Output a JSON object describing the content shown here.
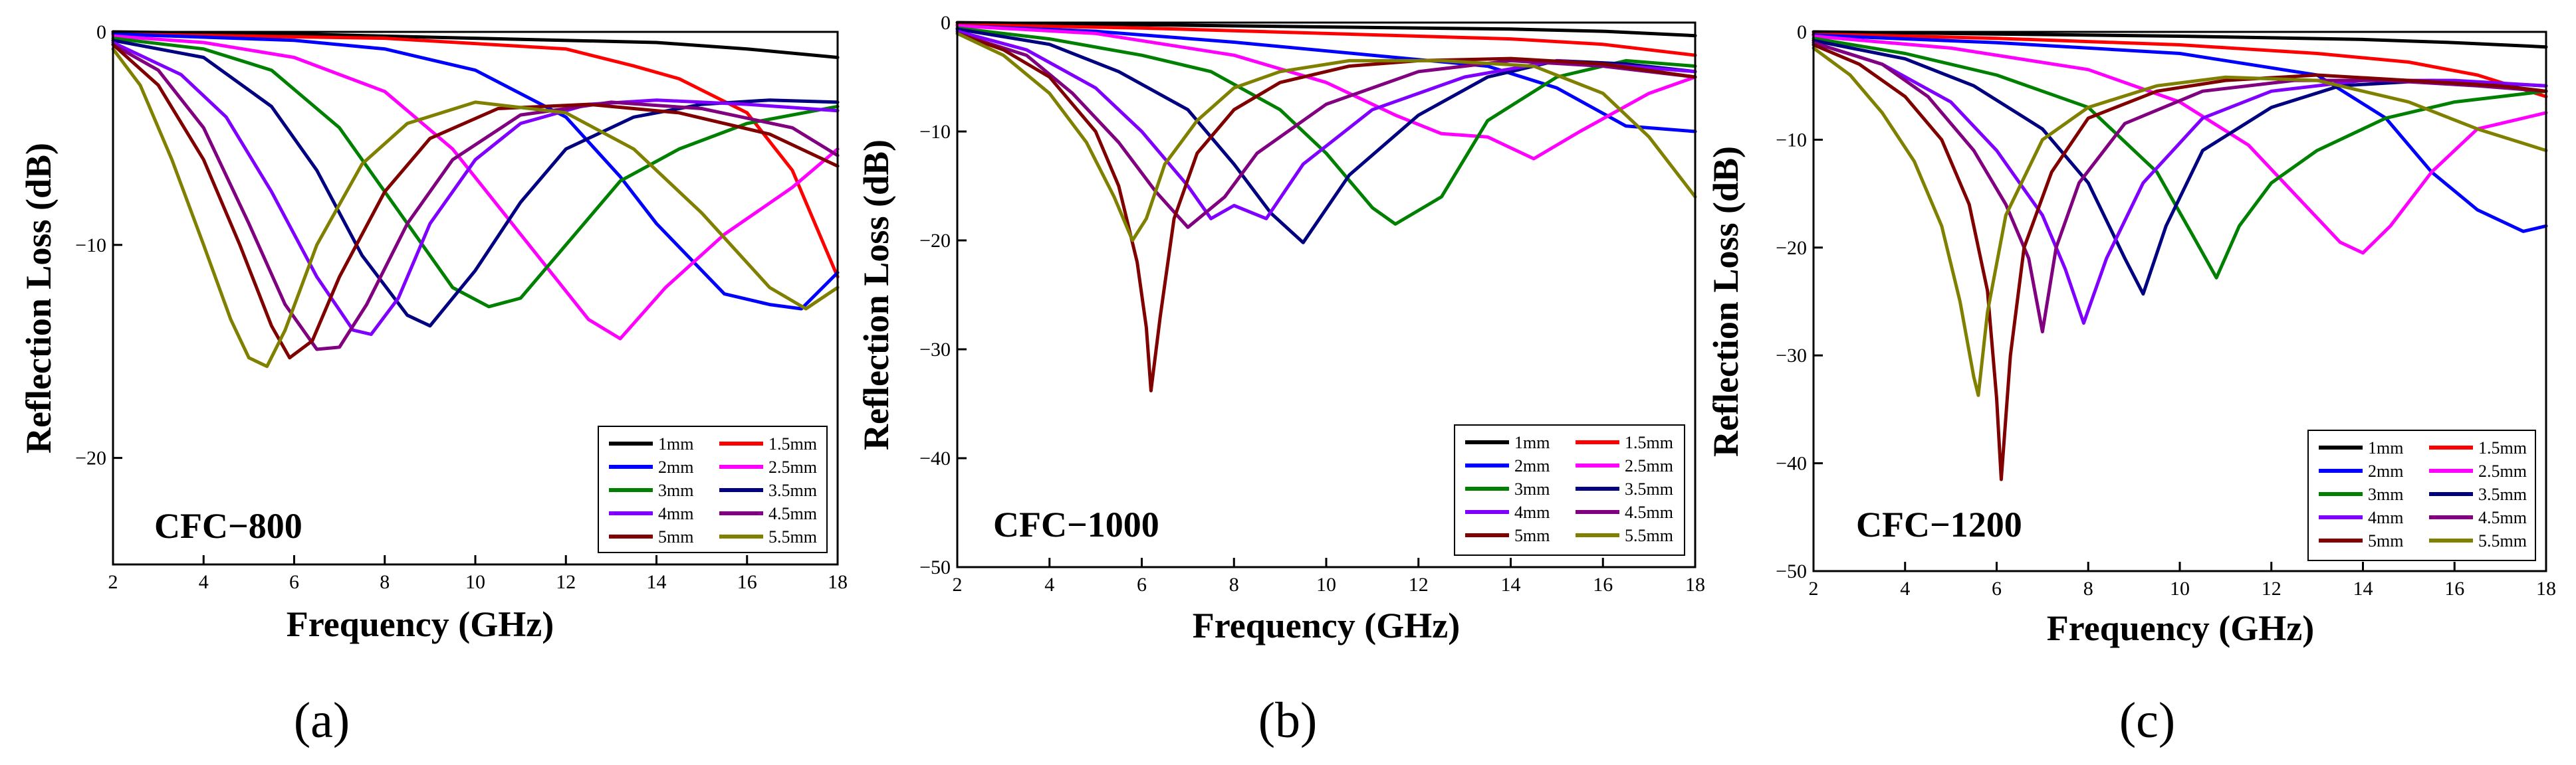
{
  "colors": {
    "1mm": "#000000",
    "1.5mm": "#ff0000",
    "2mm": "#0000ff",
    "2.5mm": "#ff00ff",
    "3mm": "#008000",
    "3.5mm": "#000080",
    "4mm": "#8000ff",
    "4.5mm": "#800080",
    "5mm": "#800000",
    "5.5mm": "#808000"
  },
  "chart_data": [
    {
      "type": "line",
      "panel_label": "(a)",
      "sample": "CFC−800",
      "xlabel": "Frequency (GHz)",
      "ylabel": "Reflection Loss (dB)",
      "xlim": [
        2,
        18
      ],
      "ylim": [
        -25,
        0
      ],
      "xticks": [
        2,
        4,
        6,
        8,
        10,
        12,
        14,
        16,
        18
      ],
      "yticks": [
        0,
        -10,
        -20
      ],
      "legend_location": "bottom-right",
      "series": [
        {
          "name": "1mm",
          "x": [
            2,
            6,
            10,
            14,
            16,
            18
          ],
          "y": [
            0,
            -0.1,
            -0.3,
            -0.5,
            -0.8,
            -1.2
          ]
        },
        {
          "name": "1.5mm",
          "x": [
            2,
            8,
            12,
            13.5,
            14.5,
            16,
            17,
            18
          ],
          "y": [
            -0.1,
            -0.3,
            -0.8,
            -1.6,
            -2.2,
            -3.8,
            -6.5,
            -11.5
          ]
        },
        {
          "name": "2mm",
          "x": [
            2,
            6,
            8,
            10,
            12,
            13.2,
            14,
            15.5,
            16.5,
            17.2,
            18
          ],
          "y": [
            -0.1,
            -0.4,
            -0.8,
            -1.8,
            -4,
            -6.8,
            -9,
            -12.3,
            -12.8,
            -13,
            -11.3
          ]
        },
        {
          "name": "2.5mm",
          "x": [
            2,
            4,
            6,
            8,
            9.5,
            11,
            12.5,
            13.2,
            14.2,
            15.5,
            17,
            18
          ],
          "y": [
            -0.2,
            -0.5,
            -1.2,
            -2.8,
            -5.5,
            -9.5,
            -13.5,
            -14.4,
            -12,
            -9.5,
            -7.3,
            -5.5
          ]
        },
        {
          "name": "3mm",
          "x": [
            2,
            4,
            5.5,
            7,
            8.5,
            9.5,
            10.3,
            11,
            12,
            13.2,
            14.5,
            16,
            18
          ],
          "y": [
            -0.3,
            -0.8,
            -1.8,
            -4.5,
            -9,
            -12,
            -12.9,
            -12.5,
            -10,
            -7,
            -5.5,
            -4.3,
            -3.5
          ]
        },
        {
          "name": "3.5mm",
          "x": [
            2,
            4,
            5.5,
            6.5,
            7.5,
            8.5,
            9,
            10,
            11,
            12,
            13.5,
            15,
            16.5,
            18
          ],
          "y": [
            -0.4,
            -1.2,
            -3.5,
            -6.5,
            -10.5,
            -13.3,
            -13.8,
            -11.2,
            -8,
            -5.5,
            -4,
            -3.4,
            -3.2,
            -3.3
          ]
        },
        {
          "name": "4mm",
          "x": [
            2,
            3.5,
            4.5,
            5.5,
            6.5,
            7.3,
            7.7,
            8.3,
            9,
            10,
            11,
            12.5,
            14,
            16,
            18
          ],
          "y": [
            -0.5,
            -2,
            -4,
            -7.5,
            -11.5,
            -14,
            -14.2,
            -12.5,
            -9,
            -6,
            -4.3,
            -3.4,
            -3.2,
            -3.4,
            -3.7
          ]
        },
        {
          "name": "4.5mm",
          "x": [
            2,
            3,
            4,
            5,
            5.8,
            6.5,
            7,
            7.6,
            8.5,
            9.5,
            11,
            13,
            15,
            17,
            18
          ],
          "y": [
            -0.6,
            -1.8,
            -4.5,
            -9,
            -12.8,
            -14.9,
            -14.8,
            -12.8,
            -9,
            -6,
            -3.9,
            -3.3,
            -3.6,
            -4.5,
            -5.8
          ]
        },
        {
          "name": "5mm",
          "x": [
            2,
            3,
            4,
            4.8,
            5.5,
            5.9,
            6.4,
            7,
            8,
            9,
            10.5,
            12.5,
            14.5,
            16.5,
            18
          ],
          "y": [
            -0.6,
            -2.5,
            -6,
            -10,
            -13.8,
            -15.3,
            -14.5,
            -11.5,
            -7.5,
            -5,
            -3.6,
            -3.4,
            -3.8,
            -4.8,
            -6.3
          ]
        },
        {
          "name": "5.5mm",
          "x": [
            2,
            2.6,
            3.3,
            4,
            4.6,
            5,
            5.4,
            5.8,
            6.5,
            7.5,
            8.5,
            10,
            12,
            13.5,
            15,
            16.5,
            17.3,
            18
          ],
          "y": [
            -0.8,
            -2.5,
            -6,
            -10,
            -13.5,
            -15.3,
            -15.7,
            -14,
            -10,
            -6.2,
            -4.3,
            -3.3,
            -3.8,
            -5.5,
            -8.5,
            -12,
            -13,
            -12
          ]
        }
      ]
    },
    {
      "type": "line",
      "panel_label": "(b)",
      "sample": "CFC−1000",
      "xlabel": "Frequency (GHz)",
      "ylabel": "Reflection Loss (dB)",
      "xlim": [
        2,
        18
      ],
      "ylim": [
        -50,
        0
      ],
      "xticks": [
        2,
        4,
        6,
        8,
        10,
        12,
        14,
        16,
        18
      ],
      "yticks": [
        0,
        -10,
        -20,
        -30,
        -40,
        -50
      ],
      "legend_location": "bottom-right",
      "series": [
        {
          "name": "1mm",
          "x": [
            2,
            6,
            10,
            14,
            16,
            18
          ],
          "y": [
            0,
            -0.2,
            -0.4,
            -0.6,
            -0.8,
            -1.2
          ]
        },
        {
          "name": "1.5mm",
          "x": [
            2,
            6,
            10,
            14,
            16,
            18
          ],
          "y": [
            -0.2,
            -0.5,
            -1,
            -1.5,
            -2,
            -3
          ]
        },
        {
          "name": "2mm",
          "x": [
            2,
            5,
            8,
            11,
            13.5,
            15,
            16.5,
            18
          ],
          "y": [
            -0.3,
            -0.8,
            -1.8,
            -3,
            -4,
            -6,
            -9.5,
            -10
          ]
        },
        {
          "name": "2.5mm",
          "x": [
            2,
            5,
            8,
            10,
            11.5,
            12.5,
            13.5,
            14.5,
            15.5,
            17,
            18
          ],
          "y": [
            -0.3,
            -1,
            -3,
            -5.5,
            -8.5,
            -10.2,
            -10.5,
            -12.5,
            -10,
            -6.5,
            -5
          ]
        },
        {
          "name": "3mm",
          "x": [
            2,
            4,
            6,
            7.5,
            9,
            10,
            11,
            11.5,
            12.5,
            13.5,
            15,
            16.5,
            18
          ],
          "y": [
            -0.5,
            -1.5,
            -3,
            -4.5,
            -8,
            -12,
            -17,
            -18.5,
            -16,
            -9,
            -5,
            -3.5,
            -4
          ]
        },
        {
          "name": "3.5mm",
          "x": [
            2,
            4,
            5.5,
            7,
            8,
            8.8,
            9.5,
            10.5,
            12,
            13.5,
            15,
            16.5,
            18
          ],
          "y": [
            -0.6,
            -2,
            -4.5,
            -8,
            -13,
            -17.5,
            -20.2,
            -14,
            -8.5,
            -5,
            -3.5,
            -3.8,
            -4.5
          ]
        },
        {
          "name": "4mm",
          "x": [
            2,
            3.5,
            5,
            6,
            7,
            7.5,
            8,
            8.7,
            9.5,
            11,
            13,
            15,
            18
          ],
          "y": [
            -0.8,
            -2.5,
            -6,
            -10,
            -15,
            -18,
            -16.8,
            -18,
            -13,
            -8,
            -5,
            -3.5,
            -4.5
          ]
        },
        {
          "name": "4.5mm",
          "x": [
            2,
            3.5,
            4.5,
            5.5,
            6.3,
            7,
            7.8,
            8.5,
            10,
            12,
            14,
            16,
            18
          ],
          "y": [
            -1,
            -3,
            -6.5,
            -11,
            -15.5,
            -18.8,
            -16,
            -12,
            -7.5,
            -4.5,
            -3.5,
            -4,
            -5
          ]
        },
        {
          "name": "5mm",
          "x": [
            2,
            3,
            4,
            5,
            5.5,
            5.9,
            6.1,
            6.2,
            6.4,
            6.7,
            7.2,
            8,
            9,
            10.5,
            12,
            14,
            16,
            18
          ],
          "y": [
            -1,
            -2.5,
            -5,
            -10,
            -15,
            -22,
            -28,
            -33.8,
            -27,
            -18,
            -12,
            -8,
            -5.5,
            -4,
            -3.5,
            -3.3,
            -3.8,
            -5
          ]
        },
        {
          "name": "5.5mm",
          "x": [
            2,
            3,
            4,
            4.8,
            5.4,
            5.8,
            6.1,
            6.5,
            7.2,
            8,
            9,
            10.5,
            12.5,
            14.5,
            16,
            17,
            18
          ],
          "y": [
            -1,
            -3,
            -6.5,
            -11,
            -16,
            -20,
            -18,
            -13,
            -9,
            -6,
            -4.5,
            -3.5,
            -3.5,
            -4,
            -6.5,
            -10.5,
            -16
          ]
        }
      ]
    },
    {
      "type": "line",
      "panel_label": "(c)",
      "sample": "CFC−1200",
      "xlabel": "Frequency (GHz)",
      "ylabel": "Reflection Loss (dB)",
      "xlim": [
        2,
        18
      ],
      "ylim": [
        -50,
        0
      ],
      "xticks": [
        2,
        4,
        6,
        8,
        10,
        12,
        14,
        16,
        18
      ],
      "yticks": [
        0,
        -10,
        -20,
        -30,
        -40,
        -50
      ],
      "legend_location": "bottom-right",
      "series": [
        {
          "name": "1mm",
          "x": [
            2,
            6,
            10,
            14,
            16,
            18
          ],
          "y": [
            0,
            -0.2,
            -0.4,
            -0.7,
            -1,
            -1.4
          ]
        },
        {
          "name": "1.5mm",
          "x": [
            2,
            6,
            10,
            13,
            15,
            16.5,
            18
          ],
          "y": [
            -0.2,
            -0.6,
            -1.2,
            -2,
            -2.8,
            -4,
            -6
          ]
        },
        {
          "name": "2mm",
          "x": [
            2,
            6,
            10,
            13,
            14.5,
            15.5,
            16.5,
            17.5,
            18
          ],
          "y": [
            -0.3,
            -1,
            -2,
            -4,
            -8,
            -13,
            -16.5,
            -18.5,
            -18
          ]
        },
        {
          "name": "2.5mm",
          "x": [
            2,
            5,
            8,
            10,
            11.5,
            12.5,
            13.5,
            14,
            14.6,
            15.5,
            16.5,
            18
          ],
          "y": [
            -0.4,
            -1.5,
            -3.5,
            -6.5,
            -10.5,
            -15,
            -19.5,
            -20.5,
            -18,
            -13,
            -9,
            -7.5
          ]
        },
        {
          "name": "3mm",
          "x": [
            2,
            4,
            6,
            8,
            9.5,
            10.3,
            10.8,
            11.3,
            12,
            13,
            14.5,
            16,
            18
          ],
          "y": [
            -0.6,
            -2,
            -4,
            -7,
            -13,
            -19,
            -22.8,
            -18,
            -14,
            -11,
            -8,
            -6.5,
            -5.5
          ]
        },
        {
          "name": "3.5mm",
          "x": [
            2,
            4,
            5.5,
            7,
            8,
            8.8,
            9.2,
            9.7,
            10.5,
            12,
            13.5,
            15.5,
            18
          ],
          "y": [
            -0.8,
            -2.5,
            -5,
            -9,
            -14,
            -21,
            -24.3,
            -18,
            -11,
            -7,
            -5,
            -4.5,
            -5
          ]
        },
        {
          "name": "4mm",
          "x": [
            2,
            3.5,
            5,
            6,
            7,
            7.5,
            7.9,
            8.4,
            9.2,
            10.5,
            12,
            14,
            16,
            18
          ],
          "y": [
            -1,
            -3,
            -6.5,
            -11,
            -17,
            -22,
            -27,
            -21,
            -14,
            -8,
            -5.5,
            -4.5,
            -4.5,
            -5
          ]
        },
        {
          "name": "4.5mm",
          "x": [
            2,
            3.5,
            4.5,
            5.5,
            6.2,
            6.7,
            7,
            7.3,
            7.8,
            8.8,
            10.5,
            12.5,
            14.5,
            16.5,
            18
          ],
          "y": [
            -1,
            -3,
            -6,
            -11,
            -16,
            -21,
            -27.8,
            -20,
            -14,
            -8.5,
            -5.5,
            -4.5,
            -4.5,
            -5,
            -5.5
          ]
        },
        {
          "name": "5mm",
          "x": [
            2,
            3,
            4,
            4.8,
            5.4,
            5.8,
            6,
            6.1,
            6.3,
            6.6,
            7.2,
            8,
            9.5,
            11,
            13,
            15,
            17,
            18
          ],
          "y": [
            -1.2,
            -3,
            -6,
            -10,
            -16,
            -24,
            -34,
            -41.5,
            -30,
            -20,
            -13,
            -8,
            -5.5,
            -4.5,
            -4,
            -4.5,
            -5,
            -5.5
          ]
        },
        {
          "name": "5.5mm",
          "x": [
            2,
            2.8,
            3.5,
            4.2,
            4.8,
            5.2,
            5.5,
            5.6,
            5.8,
            6.2,
            7,
            8,
            9.5,
            11,
            13,
            15,
            16.5,
            18
          ],
          "y": [
            -1.5,
            -4,
            -7.5,
            -12,
            -18,
            -25,
            -32,
            -33.7,
            -26,
            -17,
            -10,
            -7,
            -5,
            -4.2,
            -4.5,
            -6.5,
            -9,
            -11
          ]
        }
      ]
    }
  ]
}
